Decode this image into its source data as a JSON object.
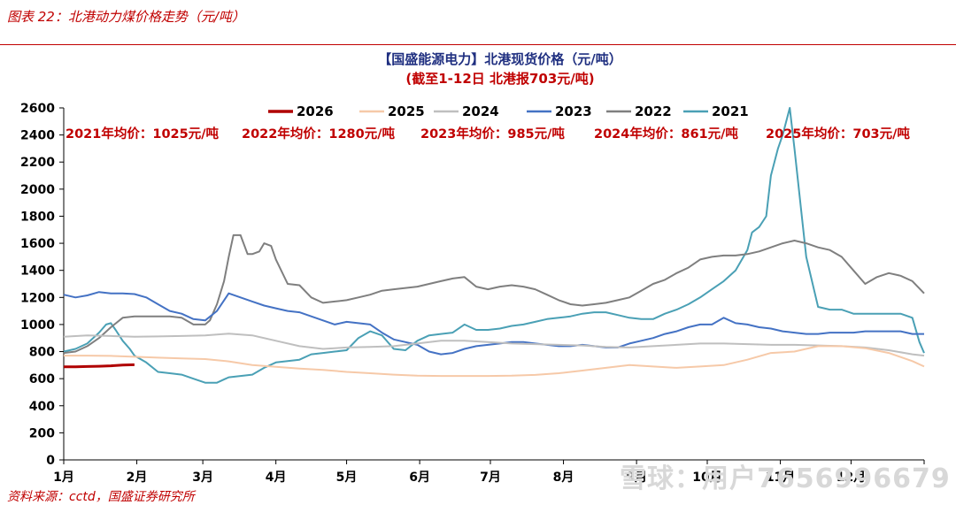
{
  "caption": "图表 22：北港动力煤价格走势（元/吨）",
  "source": "资料来源：cctd，国盛证券研究所",
  "watermark": "雪球：用户7656996679",
  "chart_data": {
    "type": "line",
    "title": "【国盛能源电力】北港现货价格（元/吨）",
    "subtitle": "(截至1-12日 北港报703元/吨)",
    "ylim": [
      0,
      2600
    ],
    "yticks": [
      0,
      200,
      400,
      600,
      800,
      1000,
      1200,
      1400,
      1600,
      1800,
      2000,
      2200,
      2400,
      2600
    ],
    "xlim": [
      0,
      365
    ],
    "x_unit": "day-of-year",
    "month_labels": [
      "1月",
      "2月",
      "3月",
      "4月",
      "5月",
      "6月",
      "7月",
      "8月",
      "9月",
      "10月",
      "11月",
      "12月"
    ],
    "month_starts": [
      0,
      31,
      59,
      90,
      120,
      151,
      181,
      212,
      243,
      273,
      304,
      334
    ],
    "grid": false,
    "legend_position": "top",
    "averages": [
      "2021年均价：1025元/吨",
      "2022年均价：1280元/吨",
      "2023年均价：985元/吨",
      "2024年均价：861元/吨",
      "2025年均价：703元/吨"
    ],
    "series": [
      {
        "name": "2026",
        "color": "#b00000",
        "width": 3,
        "x": [
          0,
          5,
          10,
          15,
          20,
          25,
          30
        ],
        "y": [
          688,
          688,
          690,
          692,
          695,
          700,
          703
        ]
      },
      {
        "name": "2025",
        "color": "#f6c9a8",
        "width": 2,
        "x": [
          0,
          10,
          20,
          30,
          40,
          50,
          60,
          70,
          80,
          90,
          100,
          110,
          120,
          130,
          140,
          150,
          160,
          170,
          180,
          190,
          200,
          210,
          220,
          230,
          240,
          250,
          260,
          270,
          280,
          290,
          300,
          310,
          320,
          330,
          340,
          350,
          360,
          365
        ],
        "y": [
          770,
          770,
          768,
          762,
          755,
          750,
          745,
          728,
          700,
          688,
          675,
          665,
          650,
          640,
          630,
          622,
          620,
          620,
          620,
          622,
          628,
          640,
          660,
          680,
          700,
          690,
          680,
          690,
          700,
          740,
          790,
          800,
          840,
          840,
          825,
          790,
          730,
          690
        ]
      },
      {
        "name": "2024",
        "color": "#bfbfbf",
        "width": 2,
        "x": [
          0,
          10,
          20,
          30,
          40,
          50,
          60,
          70,
          80,
          90,
          100,
          110,
          120,
          130,
          140,
          150,
          160,
          170,
          180,
          190,
          200,
          210,
          220,
          230,
          240,
          250,
          260,
          270,
          280,
          290,
          300,
          310,
          320,
          330,
          340,
          350,
          360,
          365
        ],
        "y": [
          910,
          920,
          915,
          910,
          912,
          915,
          920,
          932,
          920,
          880,
          840,
          820,
          830,
          835,
          840,
          860,
          880,
          880,
          870,
          860,
          855,
          850,
          845,
          835,
          830,
          840,
          850,
          860,
          860,
          855,
          850,
          850,
          845,
          840,
          830,
          810,
          780,
          770
        ]
      },
      {
        "name": "2023",
        "color": "#4472c4",
        "width": 2,
        "x": [
          0,
          5,
          10,
          15,
          20,
          25,
          30,
          35,
          40,
          45,
          50,
          55,
          60,
          65,
          70,
          75,
          80,
          85,
          90,
          95,
          100,
          105,
          110,
          115,
          120,
          125,
          130,
          135,
          140,
          145,
          150,
          155,
          160,
          165,
          170,
          175,
          180,
          185,
          190,
          195,
          200,
          205,
          210,
          215,
          220,
          225,
          230,
          235,
          240,
          245,
          250,
          255,
          260,
          265,
          270,
          275,
          280,
          285,
          290,
          295,
          300,
          305,
          310,
          315,
          320,
          325,
          330,
          335,
          340,
          345,
          350,
          355,
          360,
          365
        ],
        "y": [
          1220,
          1200,
          1215,
          1240,
          1230,
          1230,
          1225,
          1200,
          1150,
          1100,
          1080,
          1040,
          1030,
          1100,
          1230,
          1200,
          1170,
          1140,
          1120,
          1100,
          1090,
          1060,
          1030,
          1000,
          1020,
          1010,
          1000,
          940,
          890,
          870,
          850,
          800,
          780,
          790,
          820,
          840,
          850,
          860,
          870,
          870,
          860,
          850,
          840,
          840,
          850,
          840,
          830,
          830,
          860,
          880,
          900,
          930,
          950,
          980,
          1000,
          1000,
          1050,
          1010,
          1000,
          980,
          970,
          950,
          940,
          930,
          930,
          940,
          940,
          940,
          950,
          950,
          950,
          950,
          930,
          930
        ]
      },
      {
        "name": "2022",
        "color": "#7f7f7f",
        "width": 2,
        "x": [
          0,
          5,
          10,
          15,
          20,
          25,
          30,
          35,
          40,
          45,
          50,
          55,
          60,
          62,
          65,
          68,
          70,
          72,
          75,
          78,
          80,
          83,
          85,
          88,
          90,
          95,
          100,
          105,
          110,
          115,
          120,
          125,
          130,
          135,
          140,
          145,
          150,
          155,
          160,
          165,
          170,
          175,
          180,
          185,
          190,
          195,
          200,
          205,
          210,
          215,
          220,
          225,
          230,
          235,
          240,
          245,
          250,
          255,
          260,
          265,
          270,
          275,
          280,
          285,
          290,
          295,
          300,
          305,
          310,
          315,
          320,
          325,
          330,
          335,
          340,
          345,
          350,
          355,
          360,
          365
        ],
        "y": [
          790,
          800,
          840,
          900,
          980,
          1050,
          1060,
          1060,
          1060,
          1060,
          1050,
          1000,
          1000,
          1030,
          1150,
          1320,
          1500,
          1660,
          1660,
          1520,
          1520,
          1540,
          1600,
          1580,
          1480,
          1300,
          1290,
          1200,
          1160,
          1170,
          1180,
          1200,
          1220,
          1250,
          1260,
          1270,
          1280,
          1300,
          1320,
          1340,
          1350,
          1280,
          1260,
          1280,
          1290,
          1280,
          1260,
          1220,
          1180,
          1150,
          1140,
          1150,
          1160,
          1180,
          1200,
          1250,
          1300,
          1330,
          1380,
          1420,
          1480,
          1500,
          1510,
          1510,
          1520,
          1540,
          1570,
          1600,
          1620,
          1600,
          1570,
          1550,
          1500,
          1400,
          1300,
          1350,
          1380,
          1360,
          1320,
          1230
        ]
      },
      {
        "name": "2021",
        "color": "#4aa0b5",
        "width": 2,
        "x": [
          0,
          5,
          10,
          15,
          18,
          20,
          22,
          25,
          28,
          30,
          35,
          40,
          45,
          50,
          55,
          60,
          65,
          70,
          75,
          80,
          85,
          90,
          95,
          100,
          105,
          110,
          115,
          120,
          125,
          130,
          135,
          140,
          145,
          150,
          155,
          160,
          165,
          170,
          175,
          180,
          185,
          190,
          195,
          200,
          205,
          210,
          215,
          220,
          225,
          230,
          235,
          240,
          245,
          250,
          255,
          260,
          265,
          270,
          275,
          280,
          285,
          290,
          292,
          295,
          298,
          300,
          303,
          305,
          308,
          310,
          315,
          320,
          325,
          330,
          335,
          340,
          345,
          350,
          355,
          360,
          363,
          365
        ],
        "y": [
          800,
          820,
          860,
          940,
          1000,
          1010,
          960,
          880,
          820,
          770,
          720,
          650,
          640,
          630,
          600,
          570,
          570,
          610,
          620,
          630,
          680,
          720,
          730,
          740,
          780,
          790,
          800,
          810,
          900,
          950,
          920,
          820,
          810,
          880,
          920,
          930,
          940,
          1000,
          960,
          960,
          970,
          990,
          1000,
          1020,
          1040,
          1050,
          1060,
          1080,
          1090,
          1090,
          1070,
          1050,
          1040,
          1040,
          1080,
          1110,
          1150,
          1200,
          1260,
          1320,
          1400,
          1550,
          1680,
          1720,
          1800,
          2100,
          2300,
          2400,
          2600,
          2300,
          1500,
          1130,
          1110,
          1110,
          1080,
          1080,
          1080,
          1080,
          1080,
          1050,
          870,
          790
        ]
      }
    ]
  }
}
